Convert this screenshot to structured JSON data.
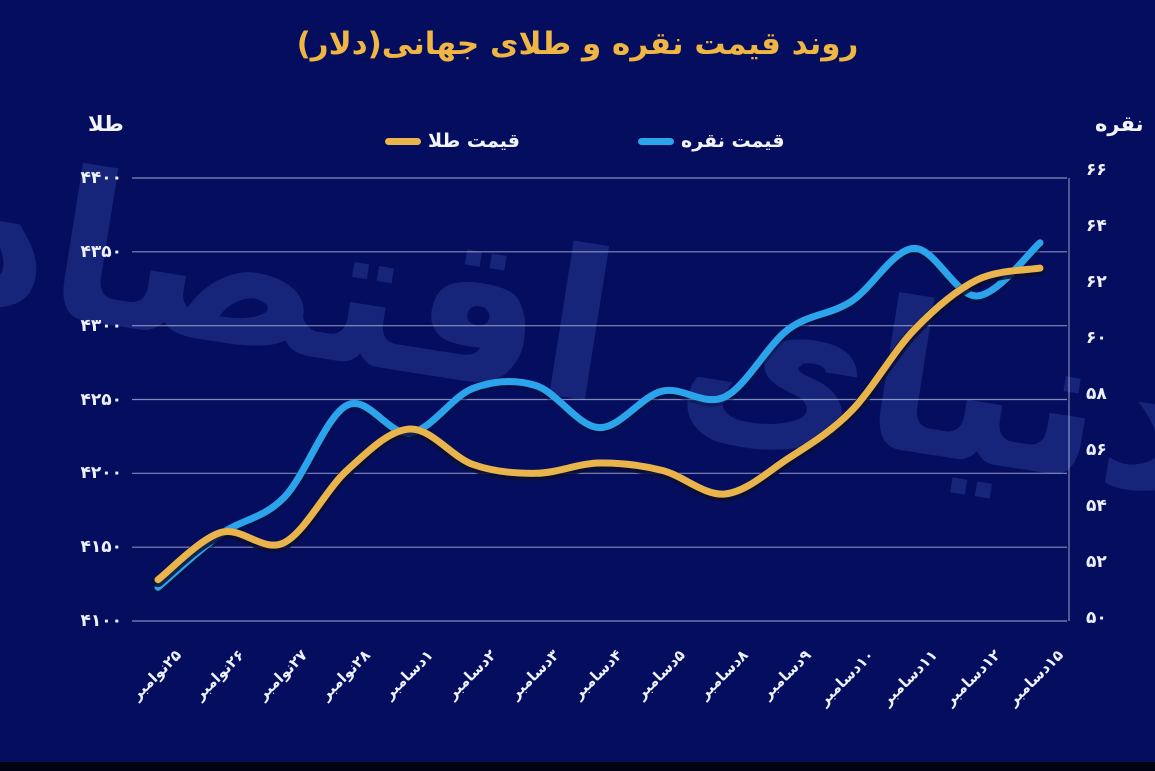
{
  "title": "روند قیمت نقره و طلای جهانی(دلار)",
  "watermark": "دنیای اقتصاد",
  "legend": {
    "gold_label": "قیمت طلا",
    "silver_label": "قیمت نقره"
  },
  "axis_titles": {
    "left": "طلا",
    "right": "نقره"
  },
  "colors": {
    "background": "#050E5E",
    "title": "#F0B643",
    "gold_line": "#E9B44C",
    "gold_line_shadow": "#0A0E33",
    "silver_line": "#2BA4EC",
    "grid": "rgba(235,240,255,0.55)",
    "text": "#EDF1FC",
    "watermark": "#18267C"
  },
  "chart_data": {
    "type": "line",
    "title": "روند قیمت نقره و طلای جهانی(دلار)",
    "xlabel": "",
    "grid": true,
    "legend_position": "top",
    "categories": [
      "۲۵نوامبر",
      "۲۶نوامبر",
      "۲۷نوامبر",
      "۲۸نوامبر",
      "۱دسامبر",
      "۲دسامبر",
      "۳دسامبر",
      "۴دسامبر",
      "۵دسامبر",
      "۸دسامبر",
      "۹دسامبر",
      "۱۰دسامبر",
      "۱۱دسامبر",
      "۱۲دسامبر",
      "۱۵دسامبر"
    ],
    "series": [
      {
        "name": "قیمت طلا",
        "axis": "left",
        "color": "#E9B44C",
        "values": [
          4128,
          4160,
          4153,
          4202,
          4230,
          4206,
          4200,
          4207,
          4202,
          4186,
          4210,
          4242,
          4297,
          4331,
          4339
        ]
      },
      {
        "name": "قیمت نقره",
        "axis": "right",
        "color": "#2BA4EC",
        "values": [
          51.1,
          53.0,
          54.3,
          57.6,
          56.6,
          58.2,
          58.3,
          56.8,
          58.1,
          57.9,
          60.3,
          61.3,
          63.2,
          61.5,
          63.4
        ]
      }
    ],
    "left_axis": {
      "label": "طلا",
      "range": [
        4100,
        4400
      ],
      "ticks": [
        4400,
        4350,
        4300,
        4250,
        4200,
        4150,
        4100
      ],
      "tick_labels": [
        "۴۴۰۰",
        "۴۳۵۰",
        "۴۳۰۰",
        "۴۲۵۰",
        "۴۲۰۰",
        "۴۱۵۰",
        "۴۱۰۰"
      ]
    },
    "right_axis": {
      "label": "نقره",
      "range": [
        50,
        66
      ],
      "ticks": [
        66,
        64,
        62,
        60,
        58,
        56,
        54,
        52,
        50
      ],
      "tick_labels": [
        "۶۶",
        "۶۴",
        "۶۲",
        "۶۰",
        "۵۸",
        "۵۶",
        "۵۴",
        "۵۲",
        "۵۰"
      ]
    }
  }
}
